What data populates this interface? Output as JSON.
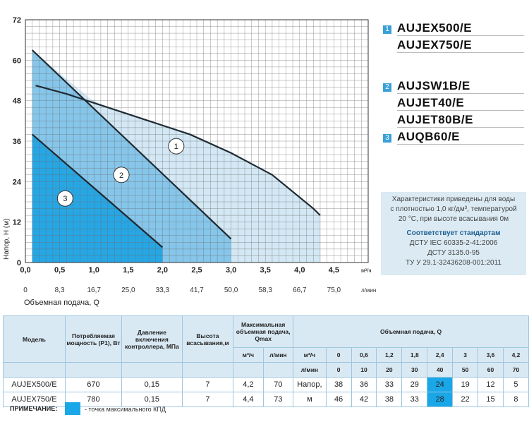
{
  "chart_data": {
    "type": "area",
    "ylabel": "Напор, Н (м)",
    "xlabel": "Объемная подача, Q",
    "x_unit_top": "м³/ч",
    "x_unit_bottom": "л/мин",
    "xlim": [
      0,
      5.0
    ],
    "ylim": [
      0,
      72
    ],
    "x_ticks_m3h": [
      "0,0",
      "0,5",
      "1,0",
      "1,5",
      "2,0",
      "2,5",
      "3,0",
      "3,5",
      "4,0",
      "4,5"
    ],
    "x_ticks_lmin": [
      "0",
      "8,3",
      "16,7",
      "25,0",
      "33,3",
      "41,7",
      "50,0",
      "58,3",
      "66,7",
      "75,0"
    ],
    "y_ticks": [
      "0",
      "12",
      "24",
      "36",
      "48",
      "60",
      "72"
    ],
    "grid": true,
    "series": [
      {
        "name": "1",
        "x": [
          0.15,
          0.6,
          1.2,
          1.8,
          2.4,
          3.0,
          3.6,
          4.2,
          4.3
        ],
        "y": [
          52.5,
          50,
          46,
          42,
          38,
          32.5,
          26,
          16,
          14
        ]
      },
      {
        "name": "2",
        "x": [
          0.1,
          3.0
        ],
        "y": [
          63,
          7
        ]
      },
      {
        "name": "3",
        "x": [
          0.1,
          2.0
        ],
        "y": [
          38,
          4.5
        ]
      }
    ]
  },
  "legend": {
    "items": [
      {
        "num": "1",
        "label": "AUJEX500/E"
      },
      {
        "num": "",
        "label": "AUJEX750/E"
      },
      {
        "num": "",
        "label": ""
      },
      {
        "num": "2",
        "label": "AUJSW1B/E"
      },
      {
        "num": "",
        "label": "AUJET40/E"
      },
      {
        "num": "",
        "label": "AUJET80B/E"
      },
      {
        "num": "3",
        "label": "AUQB60/E"
      }
    ]
  },
  "info": {
    "line1": "Характеристики приведены для воды",
    "line2": "с плотностью 1,0 кг/дм³, температурой",
    "line3": "20 °С, при высоте всасывания 0м",
    "std_title": "Соответствует стандартам",
    "std1": "ДСТУ IEC 60335-2-41:2006",
    "std2": "ДСТУ 3135.0-95",
    "std3": "ТУ У 29.1-32436208-001:2011"
  },
  "table": {
    "h_model": "Модель",
    "h_power": "Потребляемая мощность (Р1), Вт",
    "h_pressure": "Давление включения контроллера, МПа",
    "h_height": "Высота всасывания,м",
    "h_qmax": "Максимальная объемная подача, Qmax",
    "h_flow": "Объемная подача, Q",
    "u_m3h": "м³/ч",
    "u_lmin": "л/мин",
    "q_m3h": [
      "0",
      "0,6",
      "1,2",
      "1,8",
      "2,4",
      "3",
      "3,6",
      "4,2"
    ],
    "q_lmin": [
      "0",
      "10",
      "20",
      "30",
      "40",
      "50",
      "60",
      "70"
    ],
    "head_label_1": "Напор,",
    "head_label_2": "м",
    "rows": [
      {
        "model": "AUJEX500/E",
        "power": "670",
        "pressure": "0,15",
        "height": "7",
        "qmax_m3h": "4,2",
        "qmax_lmin": "70",
        "heads": [
          "38",
          "36",
          "33",
          "29",
          "24",
          "19",
          "12",
          "5"
        ]
      },
      {
        "model": "AUJEX750/E",
        "power": "780",
        "pressure": "0,15",
        "height": "7",
        "qmax_m3h": "4,4",
        "qmax_lmin": "73",
        "heads": [
          "46",
          "42",
          "38",
          "33",
          "28",
          "22",
          "15",
          "8"
        ]
      }
    ]
  },
  "note": {
    "label": "ПРИМЕЧАНИЕ:",
    "text": "- точка максимального КПД",
    "color": "#1aa7e8"
  }
}
